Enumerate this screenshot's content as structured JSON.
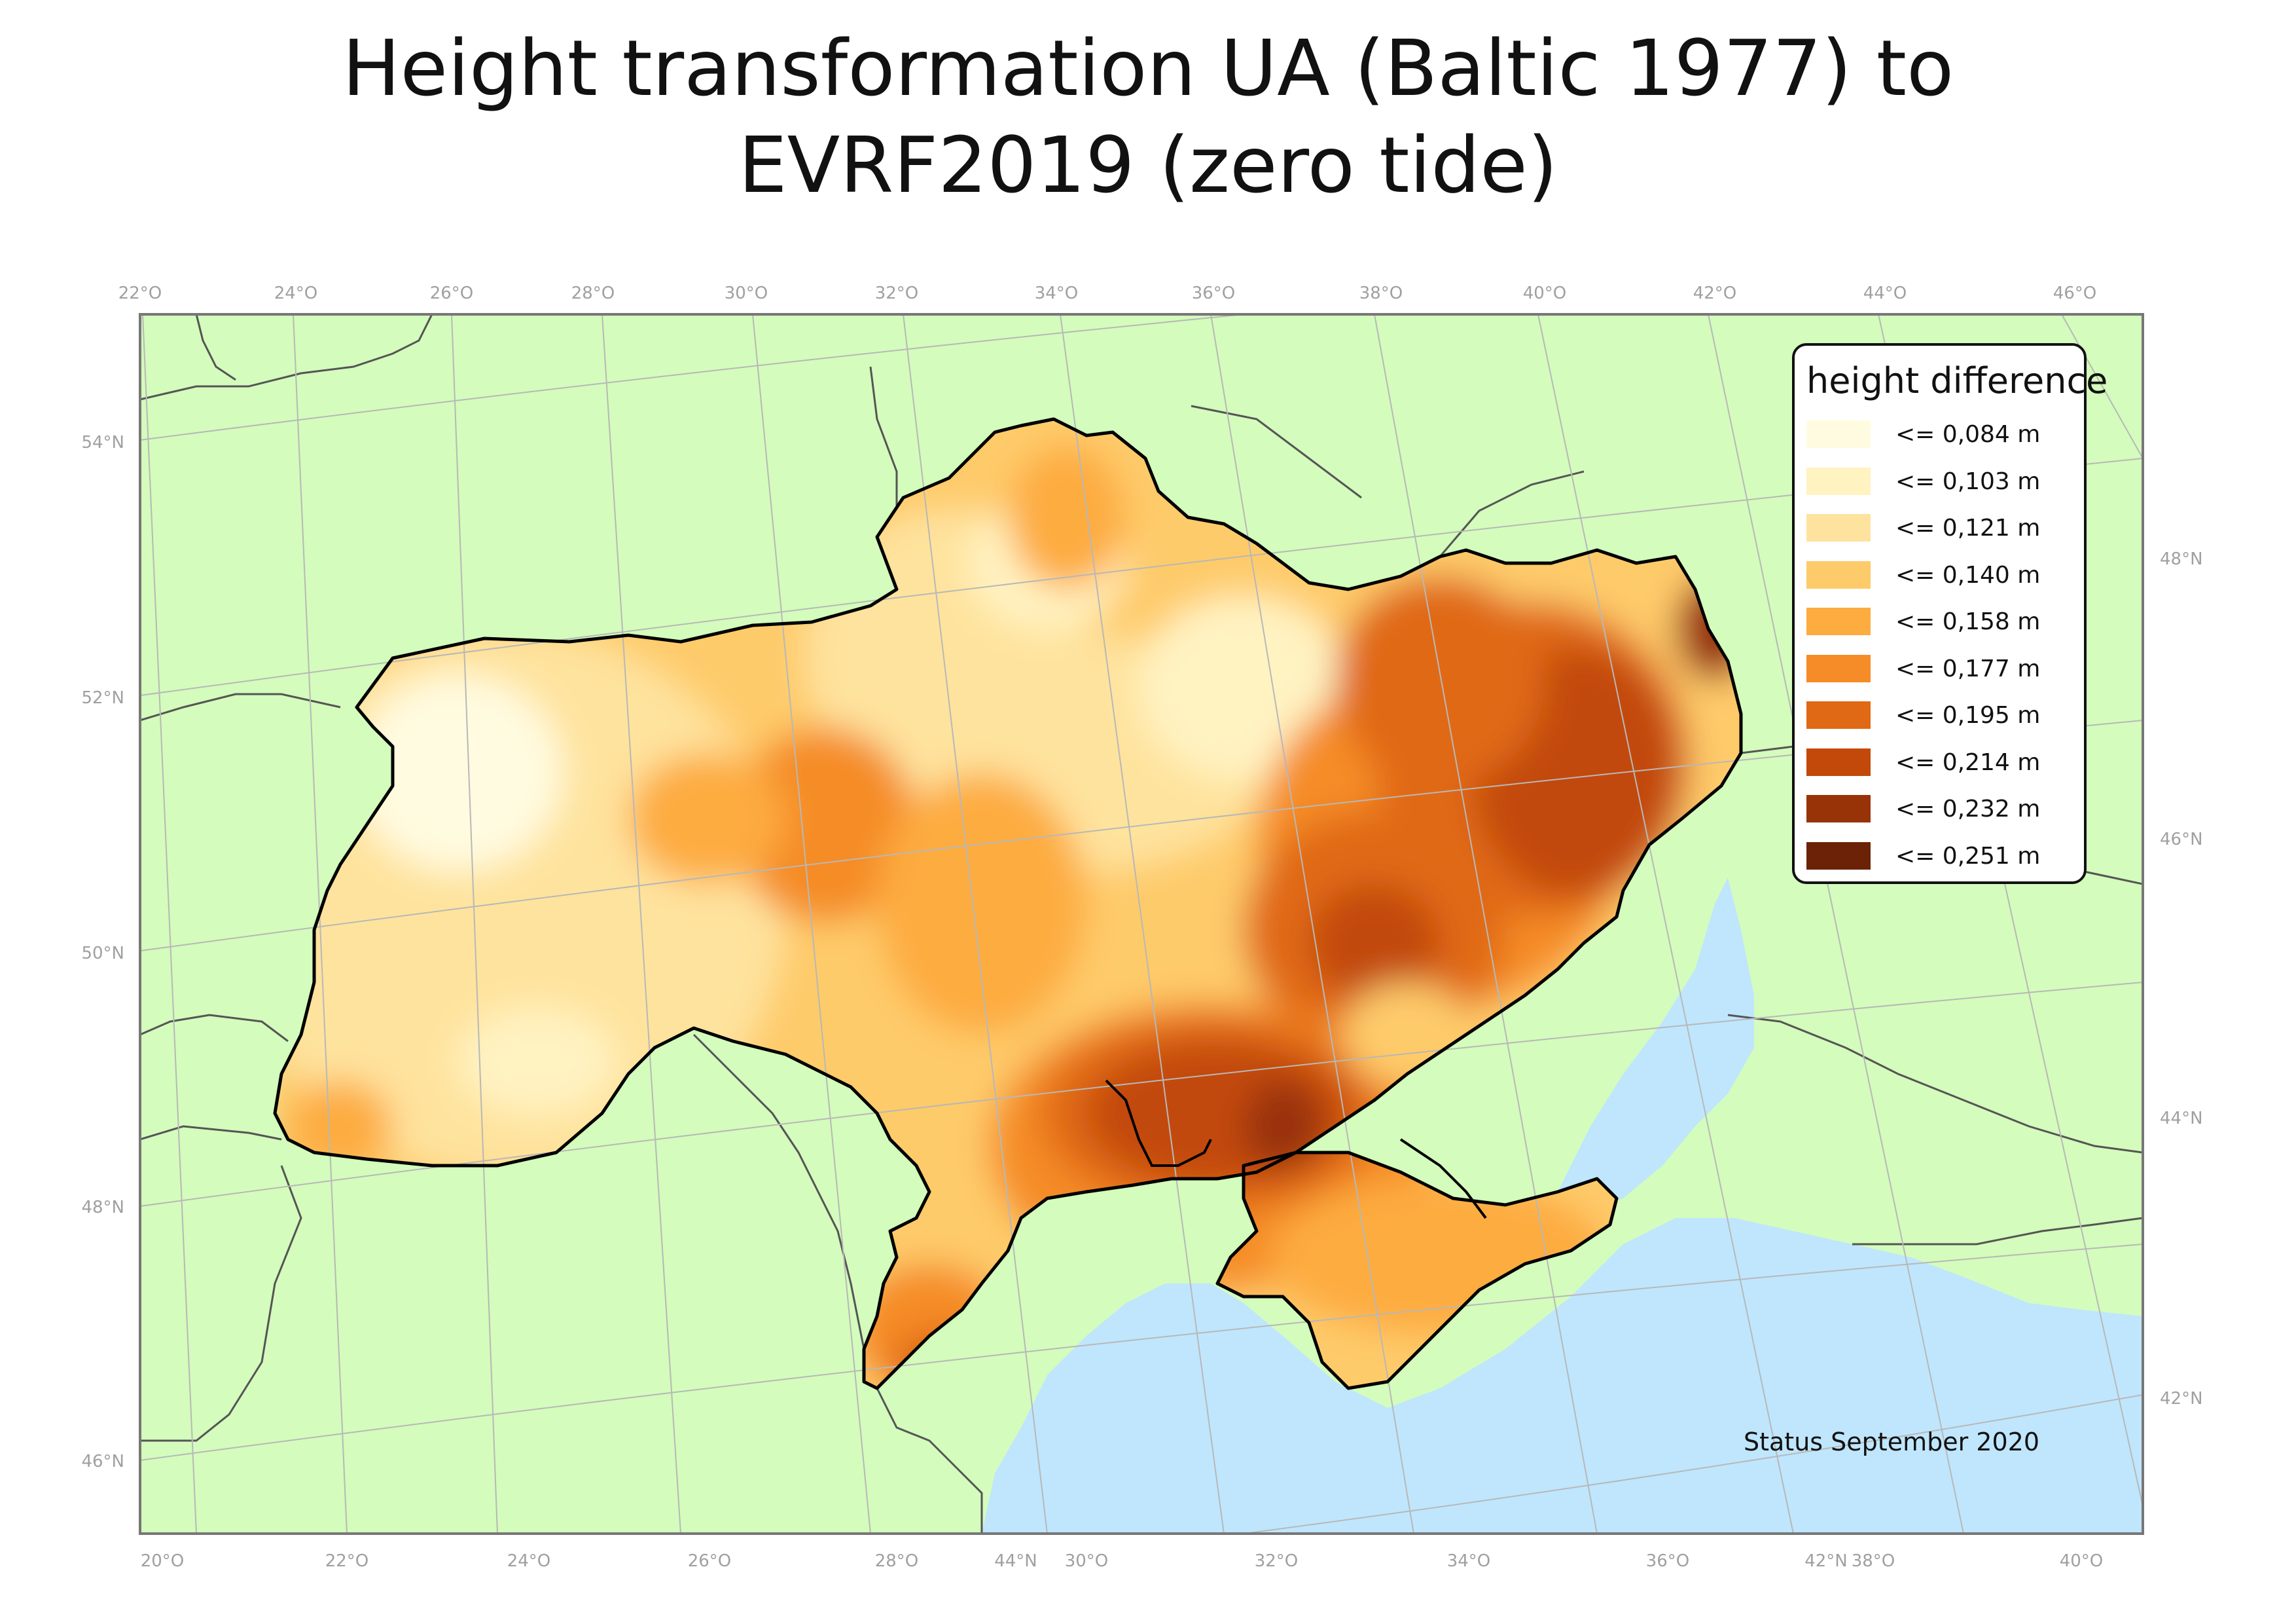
{
  "title": {
    "line1": "Height transformation UA (Baltic 1977) to",
    "line2": "EVRF2019 (zero tide)"
  },
  "legend": {
    "title": "height difference",
    "items": [
      {
        "label": "<= 0,084 m",
        "color": "#fffbe0"
      },
      {
        "label": "<= 0,103 m",
        "color": "#fff3c2"
      },
      {
        "label": "<= 0,121 m",
        "color": "#fee39e"
      },
      {
        "label": "<= 0,140 m",
        "color": "#fecb6a"
      },
      {
        "label": "<= 0,158 m",
        "color": "#fdac3f"
      },
      {
        "label": "<= 0,177 m",
        "color": "#f58c28"
      },
      {
        "label": "<= 0,195 m",
        "color": "#e06915"
      },
      {
        "label": "<= 0,214 m",
        "color": "#c2490a"
      },
      {
        "label": "<= 0,232 m",
        "color": "#983308"
      },
      {
        "label": "<= 0,251 m",
        "color": "#6b2206"
      }
    ]
  },
  "graticule": {
    "top_lon": [
      "22°O",
      "24°O",
      "26°O",
      "28°O",
      "30°O",
      "32°O",
      "34°O",
      "36°O",
      "38°O",
      "40°O",
      "42°O",
      "44°O",
      "46°O"
    ],
    "bottom_lon": [
      "20°O",
      "22°O",
      "24°O",
      "26°O",
      "28°O",
      "44°N",
      "30°O",
      "32°O",
      "34°O",
      "36°O",
      "42°N",
      "38°O",
      "40°O"
    ],
    "left_lat": [
      "54°N",
      "52°N",
      "50°N",
      "48°N",
      "46°N"
    ],
    "right_lat": [
      "48°N",
      "46°N",
      "44°N",
      "42°N"
    ]
  },
  "colors": {
    "land": "#d4fcbc",
    "sea": "#bfe6fd",
    "grid": "#b8b8b8",
    "border": "#000000",
    "neighbor_border": "#555555"
  },
  "status": "Status September 2020"
}
